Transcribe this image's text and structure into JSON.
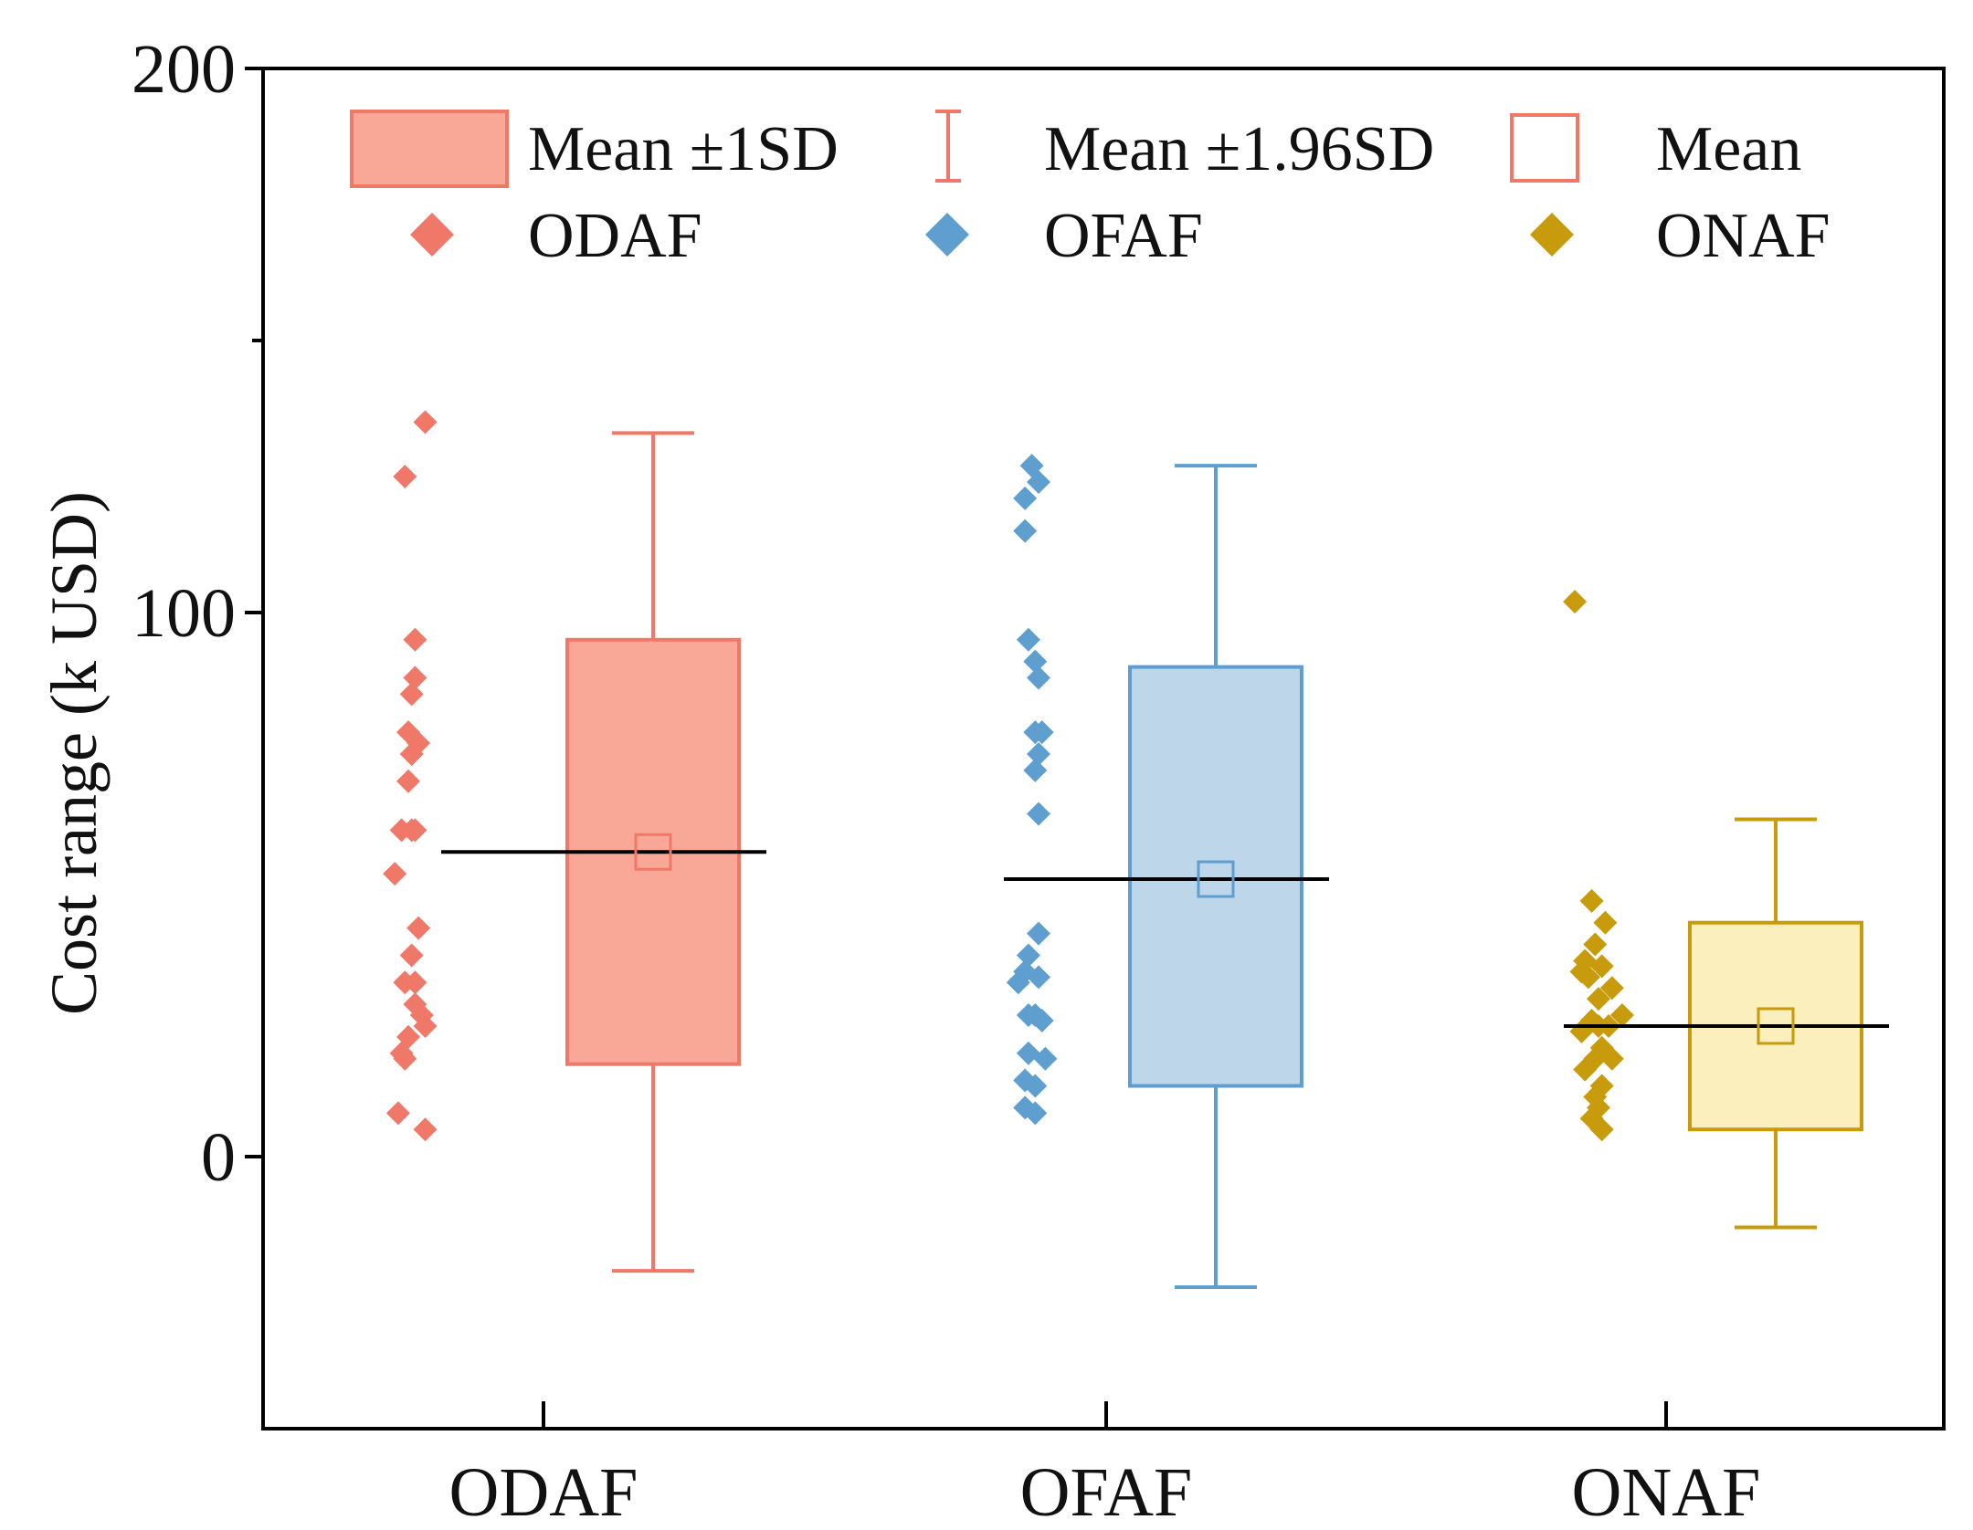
{
  "chart_data": {
    "type": "box",
    "ylabel": "Cost range (k USD)",
    "ylim": [
      -50,
      200
    ],
    "yticks": [
      0,
      100,
      200
    ],
    "yminor_ticks": [
      150
    ],
    "categories": [
      "ODAF",
      "OFAF",
      "ONAF"
    ],
    "legend": {
      "placement": "top",
      "items": [
        {
          "label": "Mean ±1SD",
          "symbol": "box"
        },
        {
          "label": "Mean ±1.96SD",
          "symbol": "whisker"
        },
        {
          "label": "Mean",
          "symbol": "mean-square"
        },
        {
          "label": "ODAF",
          "symbol": "diamond",
          "color": "#f07868"
        },
        {
          "label": "OFAF",
          "symbol": "diamond",
          "color": "#5e9fcf"
        },
        {
          "label": "ONAF",
          "symbol": "diamond",
          "color": "#c79b0b"
        }
      ]
    },
    "series": [
      {
        "category": "ODAF",
        "color": "#f07868",
        "box_fill": "#f9a898",
        "mean": 56,
        "sd_low": 17,
        "sd_high": 95,
        "whisker_low": -21,
        "whisker_high": 133,
        "points": [
          [
            -0.35,
            135
          ],
          [
            -0.41,
            125
          ],
          [
            -0.38,
            95
          ],
          [
            -0.38,
            88
          ],
          [
            -0.39,
            85
          ],
          [
            -0.4,
            78
          ],
          [
            -0.37,
            76
          ],
          [
            -0.39,
            74
          ],
          [
            -0.4,
            69
          ],
          [
            -0.38,
            60
          ],
          [
            -0.42,
            60
          ],
          [
            -0.39,
            60
          ],
          [
            -0.44,
            52
          ],
          [
            -0.37,
            42
          ],
          [
            -0.39,
            37
          ],
          [
            -0.38,
            32
          ],
          [
            -0.41,
            32
          ],
          [
            -0.38,
            28
          ],
          [
            -0.36,
            26
          ],
          [
            -0.35,
            24
          ],
          [
            -0.4,
            22
          ],
          [
            -0.42,
            19
          ],
          [
            -0.41,
            18
          ],
          [
            -0.43,
            8
          ],
          [
            -0.35,
            5
          ]
        ]
      },
      {
        "category": "OFAF",
        "color": "#5e9fcf",
        "box_fill": "#bed6ea",
        "mean": 51,
        "sd_low": 13,
        "sd_high": 90,
        "whisker_low": -24,
        "whisker_high": 127,
        "points": [
          [
            -0.22,
            127
          ],
          [
            -0.2,
            124
          ],
          [
            -0.24,
            121
          ],
          [
            -0.24,
            115
          ],
          [
            -0.23,
            95
          ],
          [
            -0.21,
            91
          ],
          [
            -0.2,
            88
          ],
          [
            -0.21,
            78
          ],
          [
            -0.19,
            78
          ],
          [
            -0.2,
            74
          ],
          [
            -0.21,
            71
          ],
          [
            -0.2,
            63
          ],
          [
            -0.2,
            41
          ],
          [
            -0.23,
            37
          ],
          [
            -0.24,
            34
          ],
          [
            -0.2,
            33
          ],
          [
            -0.26,
            32
          ],
          [
            -0.23,
            26
          ],
          [
            -0.21,
            26
          ],
          [
            -0.19,
            25
          ],
          [
            -0.23,
            19
          ],
          [
            -0.18,
            18
          ],
          [
            -0.24,
            14
          ],
          [
            -0.21,
            13
          ],
          [
            -0.24,
            9
          ],
          [
            -0.21,
            8
          ]
        ]
      },
      {
        "category": "ONAF",
        "color": "#c79b0b",
        "box_fill": "#fbefbd",
        "mean": 24,
        "sd_low": 5,
        "sd_high": 43,
        "whisker_low": -13,
        "whisker_high": 62,
        "points": [
          [
            -0.27,
            102
          ],
          [
            -0.22,
            47
          ],
          [
            -0.18,
            43
          ],
          [
            -0.21,
            39
          ],
          [
            -0.24,
            36
          ],
          [
            -0.19,
            35
          ],
          [
            -0.25,
            34
          ],
          [
            -0.23,
            33
          ],
          [
            -0.16,
            31
          ],
          [
            -0.2,
            29
          ],
          [
            -0.13,
            26
          ],
          [
            -0.22,
            25
          ],
          [
            -0.17,
            24
          ],
          [
            -0.2,
            24
          ],
          [
            -0.25,
            23
          ],
          [
            -0.19,
            20
          ],
          [
            -0.21,
            18
          ],
          [
            -0.16,
            18
          ],
          [
            -0.24,
            16
          ],
          [
            -0.19,
            13
          ],
          [
            -0.21,
            11
          ],
          [
            -0.2,
            9
          ],
          [
            -0.22,
            7
          ],
          [
            -0.19,
            5
          ]
        ]
      }
    ]
  }
}
